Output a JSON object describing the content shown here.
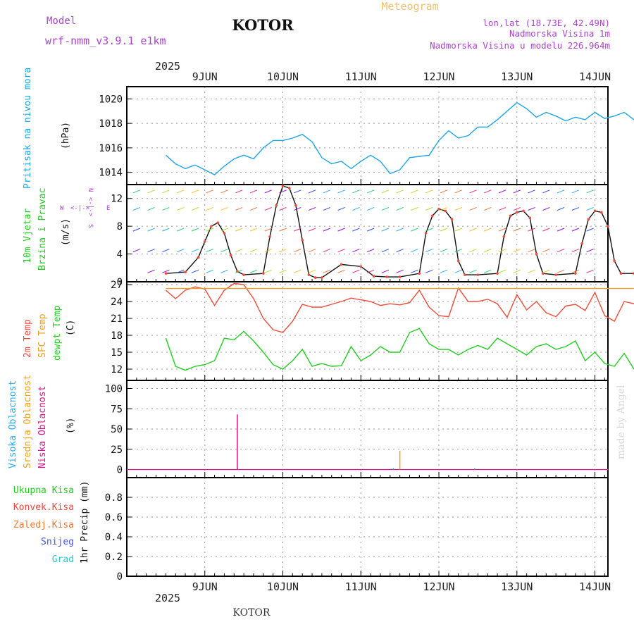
{
  "header": {
    "model_label": "Model",
    "model_name": "wrf-nmm_v3.9.1 e1km",
    "title": "KOTOR",
    "subtitle": "Meteogram",
    "coords": "lon,lat (18.73E, 42.49N)",
    "elevation": "Nadmorska Visina 1m",
    "model_elevation": "Nadmorska Visina u modelu 226.964m",
    "footer_title": "KOTOR",
    "watermark": "made by Angel",
    "year": "2025"
  },
  "days": [
    "9JUN",
    "10JUN",
    "11JUN",
    "12JUN",
    "13JUN",
    "14JUN"
  ],
  "colors": {
    "pressure": "#1ea5e6",
    "temp": "#f04a3a",
    "sfc": "#f0a020",
    "dew": "#22cc22",
    "cloud_low": "#dd1188",
    "cloud_mid": "#f0a020",
    "cloud_high": "#22aaee",
    "grid": "#999999"
  },
  "chart_data": [
    {
      "type": "line",
      "panel": "pressure",
      "ylabel_left": "Pritisak na nivou mora",
      "ylabel": "(hPa)",
      "ylim": [
        1013,
        1021
      ],
      "yticks": [
        1014,
        1016,
        1018,
        1020
      ],
      "x_hours": [
        0,
        3,
        6,
        9,
        12,
        15,
        18,
        21,
        24,
        27,
        30,
        33,
        36,
        39,
        42,
        45,
        48,
        51,
        54,
        57,
        60,
        63,
        66,
        69,
        72,
        75,
        78,
        81,
        84,
        87,
        90,
        93,
        96,
        99,
        102,
        105,
        108,
        111,
        114,
        117,
        120,
        123,
        126,
        129,
        132,
        135,
        138,
        141,
        144
      ],
      "series": [
        {
          "values": [
            1015.4,
            1014.7,
            1014.3,
            1014.6,
            1014.2,
            1013.8,
            1014.5,
            1015.1,
            1015.4,
            1015.1,
            1016.0,
            1016.6,
            1016.6,
            1016.8,
            1017.1,
            1016.5,
            1015.2,
            1014.7,
            1014.9,
            1014.3,
            1014.9,
            1015.4,
            1014.9,
            1013.9,
            1014.2,
            1015.2,
            1015.3,
            1015.4,
            1016.6,
            1017.4,
            1016.8,
            1017.0,
            1017.7,
            1017.7,
            1018.3,
            1019.0,
            1019.7,
            1019.2,
            1018.5,
            1018.9,
            1018.6,
            1018.2,
            1018.5,
            1018.3,
            1018.9,
            1018.4,
            1018.6,
            1018.9,
            1018.3
          ]
        }
      ]
    },
    {
      "type": "line",
      "panel": "wind",
      "ylabel_left": "10m Vjetar Brzina i Pravac",
      "ylabel": "(m/s)",
      "compass": {
        "n": "N",
        "s": "S",
        "w": "W",
        "e": "E",
        "arrow": "<-|->"
      },
      "ylim": [
        0,
        14
      ],
      "yticks": [
        0,
        4,
        8,
        12
      ],
      "x_hours": [
        0,
        6,
        10,
        12,
        14,
        16,
        18,
        20,
        22,
        24,
        30,
        32,
        34,
        36,
        38,
        40,
        42,
        44,
        46,
        48,
        54,
        60,
        64,
        68,
        72,
        78,
        80,
        82,
        84,
        86,
        88,
        90,
        92,
        96,
        102,
        104,
        106,
        108,
        110,
        112,
        114,
        116,
        120,
        126,
        128,
        130,
        132,
        134,
        136,
        138,
        140,
        144
      ],
      "series": [
        {
          "name": "wind-speed",
          "values": [
            1.2,
            1.4,
            3.5,
            5.8,
            8.0,
            8.5,
            7.0,
            3.8,
            1.5,
            1.0,
            1.2,
            6.5,
            11.0,
            13.8,
            13.5,
            11.0,
            6.0,
            1.0,
            0.6,
            0.6,
            2.5,
            2.2,
            0.8,
            0.7,
            0.7,
            1.2,
            7.0,
            9.5,
            10.5,
            10.2,
            9.0,
            3.0,
            1.0,
            1.0,
            1.2,
            6.5,
            9.5,
            10.0,
            10.2,
            9.2,
            4.0,
            1.2,
            1.0,
            1.2,
            5.5,
            9.0,
            10.2,
            10.0,
            8.0,
            3.0,
            1.2,
            1.2
          ]
        }
      ]
    },
    {
      "type": "line",
      "panel": "temperature",
      "ylabel_left": "2m Temp",
      "ylabel_mid": "SFC Temp",
      "ylabel_right": "dewpt Temp",
      "ylabel": "(C)",
      "ylim": [
        10,
        27.5
      ],
      "yticks": [
        12,
        15,
        18,
        21,
        24,
        27
      ],
      "x_hours": [
        0,
        3,
        6,
        9,
        12,
        15,
        18,
        21,
        24,
        27,
        30,
        33,
        36,
        39,
        42,
        45,
        48,
        51,
        54,
        57,
        60,
        63,
        66,
        69,
        72,
        75,
        78,
        81,
        84,
        87,
        90,
        93,
        96,
        99,
        102,
        105,
        108,
        111,
        114,
        117,
        120,
        123,
        126,
        129,
        132,
        135,
        138,
        141,
        144
      ],
      "series": [
        {
          "name": "2m Temp",
          "values": [
            26.0,
            24.5,
            26.0,
            26.6,
            26.2,
            23.3,
            26.0,
            27.2,
            27.0,
            24.5,
            21.0,
            19.0,
            18.5,
            20.5,
            23.5,
            23.0,
            23.0,
            23.5,
            24.0,
            24.6,
            24.3,
            24.0,
            23.3,
            23.6,
            23.4,
            23.8,
            26.0,
            23.0,
            21.5,
            21.3,
            26.4,
            24.0,
            24.0,
            24.4,
            23.6,
            21.2,
            25.2,
            22.5,
            24.0,
            22.0,
            21.3,
            23.2,
            23.5,
            22.4,
            25.6,
            21.5,
            20.5,
            24.0,
            23.6
          ]
        },
        {
          "name": "SFC Temp",
          "values": [
            26.3,
            26.3,
            26.3,
            26.3,
            26.3,
            26.3,
            26.3,
            26.3,
            26.3,
            26.3,
            26.3,
            26.3,
            26.3,
            26.3,
            26.3,
            26.3,
            26.3,
            26.3,
            26.3,
            26.3,
            26.3,
            26.3,
            26.3,
            26.3,
            26.3,
            26.3,
            26.3,
            26.3,
            26.3,
            26.3,
            26.3,
            26.3,
            26.3,
            26.3,
            26.3,
            26.3,
            26.3,
            26.3,
            26.3,
            26.3,
            26.3,
            26.3,
            26.3,
            26.3,
            26.3,
            26.3,
            26.3,
            26.3,
            26.3
          ]
        },
        {
          "name": "dewpt Temp",
          "values": [
            17.5,
            12.5,
            11.8,
            12.5,
            12.8,
            13.5,
            17.5,
            17.2,
            18.7,
            17.0,
            15.0,
            12.8,
            12.0,
            13.5,
            15.5,
            12.5,
            13.0,
            12.5,
            12.6,
            16.0,
            13.5,
            14.5,
            16.0,
            15.0,
            15.0,
            18.5,
            19.2,
            16.5,
            15.5,
            15.5,
            14.5,
            15.5,
            16.2,
            15.5,
            17.5,
            16.5,
            15.5,
            14.5,
            16.0,
            16.5,
            15.5,
            16.0,
            17.0,
            13.5,
            15.0,
            13.0,
            12.5,
            14.8,
            12.0
          ]
        }
      ]
    },
    {
      "type": "bar",
      "panel": "cloudiness",
      "ylabel_left": "Visoka Oblacnost",
      "ylabel_mid": "Srednja Oblacnost",
      "ylabel_right": "Niska Oblacnost",
      "ylabel": "(%)",
      "ylim": [
        -10,
        110
      ],
      "yticks": [
        0,
        25,
        50,
        75,
        100
      ],
      "series": [
        {
          "name": "Niska Oblacnost",
          "x_hours": [
            22
          ],
          "values": [
            68
          ]
        },
        {
          "name": "Srednja Oblacnost",
          "x_hours": [
            72
          ],
          "values": [
            23
          ]
        },
        {
          "name": "Visoka Oblacnost",
          "x_hours": [
            70,
            95
          ],
          "values": [
            1.5,
            1.5
          ]
        }
      ]
    },
    {
      "type": "bar",
      "panel": "precipitation",
      "legend": [
        "Ukupna Kisa",
        "Konvek.Kisa",
        "Zaledj.Kisa",
        "Snijeg",
        "Grad"
      ],
      "ylabel": "1hr Precip (mm)",
      "ylim": [
        0,
        1.0
      ],
      "yticks": [
        0,
        0.2,
        0.4,
        0.6,
        0.8
      ],
      "ytick_labels": [
        "0",
        "0.2",
        "0.4",
        "0.6",
        "0.8"
      ],
      "series": [
        {
          "name": "Ukupna Kisa",
          "values": []
        }
      ]
    }
  ]
}
